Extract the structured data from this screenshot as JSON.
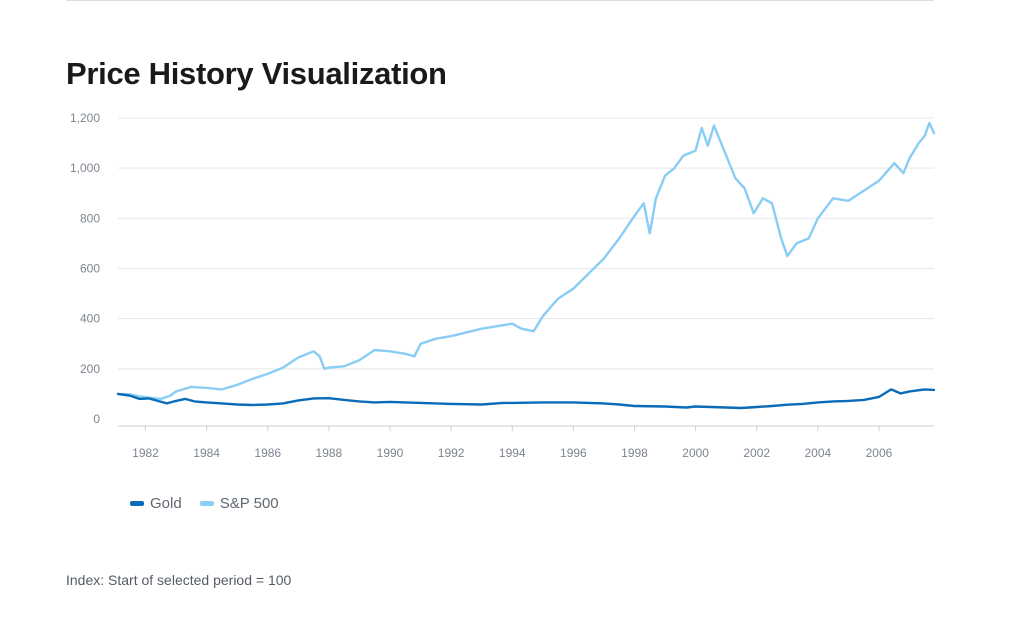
{
  "title": "Price History Visualization",
  "footnote": "Index: Start of selected period = 100",
  "colors": {
    "gold": "#0a6bb8",
    "sp500": "#89cdf4",
    "grid": "#e6e8eb",
    "axis": "#c9ced4",
    "tick": "#7d8590"
  },
  "legend": [
    {
      "name": "Gold",
      "color": "#0a6bb8"
    },
    {
      "name": "S&P 500",
      "color": "#89cdf4"
    }
  ],
  "chart_data": {
    "type": "line",
    "title": "Price History Visualization",
    "xlabel": "",
    "ylabel": "",
    "xlim": [
      1981.1,
      2007.8
    ],
    "ylim": [
      0,
      1200
    ],
    "yticks": [
      0,
      200,
      400,
      600,
      800,
      1000,
      1200
    ],
    "ytick_labels": [
      "0",
      "200",
      "400",
      "600",
      "800",
      "1,000",
      "1,200"
    ],
    "xticks": [
      1982,
      1984,
      1986,
      1988,
      1990,
      1992,
      1994,
      1996,
      1998,
      2000,
      2002,
      2004,
      2006
    ],
    "xtick_labels": [
      "1982",
      "1984",
      "1986",
      "1988",
      "1990",
      "1992",
      "1994",
      "1996",
      "1998",
      "2000",
      "2002",
      "2004",
      "2006"
    ],
    "legend_position": "bottom-left",
    "series": [
      {
        "name": "Gold",
        "color": "#0a6bb8",
        "x": [
          1981.1,
          1981.5,
          1981.8,
          1982.1,
          1982.4,
          1982.7,
          1983.0,
          1983.3,
          1983.6,
          1984.0,
          1984.5,
          1985.0,
          1985.5,
          1986.0,
          1986.5,
          1987.0,
          1987.5,
          1988.0,
          1988.5,
          1989.0,
          1989.5,
          1990.0,
          1990.5,
          1991.0,
          1992.0,
          1993.0,
          1993.7,
          1994.0,
          1995.0,
          1996.0,
          1997.0,
          1997.5,
          1998.0,
          1999.0,
          1999.7,
          2000.0,
          2000.5,
          2001.0,
          2001.5,
          2002.0,
          2002.5,
          2003.0,
          2003.5,
          2004.0,
          2004.5,
          2005.0,
          2005.5,
          2006.0,
          2006.4,
          2006.7,
          2007.0,
          2007.5,
          2007.8
        ],
        "values": [
          100,
          93,
          80,
          82,
          72,
          62,
          72,
          80,
          70,
          66,
          62,
          58,
          56,
          58,
          62,
          74,
          82,
          83,
          76,
          70,
          66,
          68,
          66,
          64,
          60,
          58,
          64,
          64,
          66,
          66,
          62,
          58,
          52,
          50,
          46,
          50,
          48,
          46,
          44,
          48,
          52,
          57,
          60,
          66,
          70,
          72,
          76,
          88,
          118,
          102,
          110,
          118,
          116
        ]
      },
      {
        "name": "S&P 500",
        "color": "#89cdf4",
        "x": [
          1981.1,
          1981.5,
          1981.8,
          1982.2,
          1982.5,
          1982.8,
          1983.0,
          1983.5,
          1984.0,
          1984.5,
          1985.0,
          1985.5,
          1986.0,
          1986.5,
          1987.0,
          1987.5,
          1987.7,
          1987.85,
          1988.0,
          1988.5,
          1989.0,
          1989.5,
          1990.0,
          1990.5,
          1990.8,
          1991.0,
          1991.5,
          1992.0,
          1993.0,
          1994.0,
          1994.3,
          1994.7,
          1995.0,
          1995.5,
          1996.0,
          1996.5,
          1997.0,
          1997.5,
          1998.0,
          1998.3,
          1998.5,
          1998.7,
          1999.0,
          1999.3,
          1999.6,
          2000.0,
          2000.2,
          2000.4,
          2000.6,
          2000.8,
          2001.0,
          2001.3,
          2001.6,
          2001.9,
          2002.2,
          2002.5,
          2002.8,
          2003.0,
          2003.3,
          2003.7,
          2004.0,
          2004.5,
          2005.0,
          2005.5,
          2006.0,
          2006.5,
          2006.8,
          2007.0,
          2007.3,
          2007.5,
          2007.65,
          2007.8
        ],
        "values": [
          100,
          98,
          90,
          84,
          80,
          92,
          110,
          128,
          124,
          118,
          136,
          160,
          180,
          205,
          245,
          270,
          250,
          200,
          205,
          210,
          235,
          275,
          270,
          260,
          250,
          300,
          320,
          330,
          360,
          380,
          360,
          350,
          410,
          480,
          520,
          580,
          640,
          720,
          810,
          860,
          740,
          880,
          970,
          1000,
          1050,
          1070,
          1160,
          1090,
          1170,
          1110,
          1050,
          960,
          920,
          820,
          880,
          860,
          720,
          650,
          700,
          720,
          800,
          880,
          870,
          910,
          950,
          1020,
          980,
          1040,
          1100,
          1130,
          1180,
          1140
        ]
      }
    ]
  }
}
